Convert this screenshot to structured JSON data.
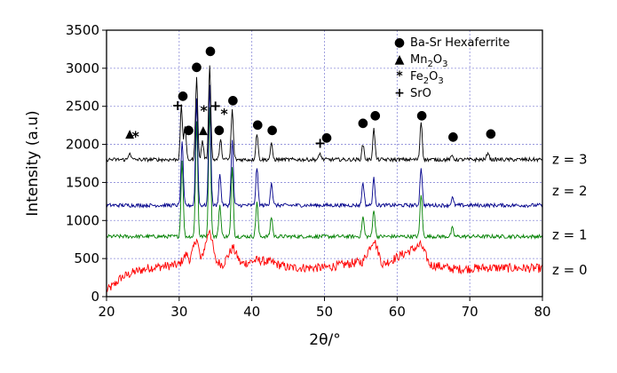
{
  "chart_data": {
    "type": "line",
    "title": "",
    "xlabel": "2θ/°",
    "ylabel": "Intensity (a.u)",
    "xlim": [
      20,
      80
    ],
    "ylim": [
      0,
      3500
    ],
    "xticks": [
      20,
      30,
      40,
      50,
      60,
      70,
      80
    ],
    "yticks": [
      0,
      500,
      1000,
      1500,
      2000,
      2500,
      3000,
      3500
    ],
    "grid": true,
    "legend_position": "top-right",
    "series": [
      {
        "name": "z = 0",
        "color": "#ff0000",
        "baseline": 320,
        "noise": 60,
        "points": [
          [
            20,
            80
          ],
          [
            21,
            150
          ],
          [
            22,
            250
          ],
          [
            24,
            330
          ],
          [
            26,
            380
          ],
          [
            28,
            400
          ],
          [
            30,
            420
          ],
          [
            31,
            560
          ],
          [
            31.5,
            480
          ],
          [
            32.4,
            780
          ],
          [
            33,
            470
          ],
          [
            34.2,
            900
          ],
          [
            35,
            470
          ],
          [
            36,
            420
          ],
          [
            37.4,
            650
          ],
          [
            38.5,
            430
          ],
          [
            40.8,
            480
          ],
          [
            42.7,
            450
          ],
          [
            45,
            380
          ],
          [
            50,
            380
          ],
          [
            55.3,
            460
          ],
          [
            56.8,
            760
          ],
          [
            58,
            420
          ],
          [
            63.3,
            680
          ],
          [
            64.5,
            420
          ],
          [
            68,
            360
          ],
          [
            72.5,
            380
          ],
          [
            80,
            370
          ]
        ]
      },
      {
        "name": "z = 1",
        "color": "#008000",
        "baseline": 790,
        "noise": 25,
        "peaks": [
          [
            30.4,
            1800
          ],
          [
            32.4,
            2300
          ],
          [
            34.2,
            2500
          ],
          [
            35.6,
            1200
          ],
          [
            37.3,
            1700
          ],
          [
            40.7,
            1250
          ],
          [
            42.7,
            1050
          ],
          [
            55.3,
            1050
          ],
          [
            56.8,
            1150
          ],
          [
            63.3,
            1350
          ],
          [
            67.6,
            900
          ]
        ]
      },
      {
        "name": "z = 2",
        "color": "#00008b",
        "baseline": 1200,
        "noise": 25,
        "peaks": [
          [
            30.4,
            2050
          ],
          [
            32.4,
            2600
          ],
          [
            34.2,
            2800
          ],
          [
            35.6,
            1600
          ],
          [
            37.3,
            2050
          ],
          [
            40.7,
            1700
          ],
          [
            42.7,
            1500
          ],
          [
            55.3,
            1500
          ],
          [
            56.8,
            1550
          ],
          [
            63.3,
            1700
          ],
          [
            67.6,
            1300
          ]
        ]
      },
      {
        "name": "z = 3",
        "color": "#000000",
        "baseline": 1800,
        "noise": 25,
        "peaks": [
          [
            23.2,
            1900
          ],
          [
            30.3,
            2500
          ],
          [
            30.8,
            2250
          ],
          [
            32.4,
            2900
          ],
          [
            33.2,
            2050
          ],
          [
            34.2,
            3050
          ],
          [
            35.7,
            2050
          ],
          [
            37.3,
            2450
          ],
          [
            40.7,
            2150
          ],
          [
            42.7,
            2000
          ],
          [
            49.4,
            1880
          ],
          [
            55.3,
            2000
          ],
          [
            56.8,
            2200
          ],
          [
            63.3,
            2300
          ],
          [
            67.6,
            1850
          ],
          [
            72.5,
            1900
          ]
        ]
      }
    ],
    "markers": [
      {
        "symbol": "●",
        "x": 30.5,
        "y": 2650
      },
      {
        "symbol": "●",
        "x": 31.3,
        "y": 2200
      },
      {
        "symbol": "●",
        "x": 32.4,
        "y": 3030
      },
      {
        "symbol": "●",
        "x": 34.3,
        "y": 3240
      },
      {
        "symbol": "●",
        "x": 35.5,
        "y": 2200
      },
      {
        "symbol": "●",
        "x": 37.4,
        "y": 2590
      },
      {
        "symbol": "●",
        "x": 40.8,
        "y": 2270
      },
      {
        "symbol": "●",
        "x": 42.8,
        "y": 2200
      },
      {
        "symbol": "●",
        "x": 50.3,
        "y": 2100
      },
      {
        "symbol": "●",
        "x": 55.3,
        "y": 2290
      },
      {
        "symbol": "●",
        "x": 57.0,
        "y": 2390
      },
      {
        "symbol": "●",
        "x": 63.4,
        "y": 2390
      },
      {
        "symbol": "●",
        "x": 67.7,
        "y": 2110
      },
      {
        "symbol": "●",
        "x": 72.9,
        "y": 2150
      },
      {
        "symbol": "▲",
        "x": 23.2,
        "y": 2150
      },
      {
        "symbol": "▲",
        "x": 33.3,
        "y": 2200
      },
      {
        "symbol": "*",
        "x": 24.0,
        "y": 2100
      },
      {
        "symbol": "*",
        "x": 33.4,
        "y": 2440
      },
      {
        "symbol": "*",
        "x": 36.2,
        "y": 2400
      },
      {
        "symbol": "+",
        "x": 29.8,
        "y": 2510
      },
      {
        "symbol": "+",
        "x": 35.0,
        "y": 2500
      },
      {
        "symbol": "+",
        "x": 49.4,
        "y": 2010
      }
    ],
    "legend": [
      {
        "symbol": "●",
        "label": "Ba-Sr Hexaferrite"
      },
      {
        "symbol": "▲",
        "label": "Mn",
        "sub1": "2",
        "mid": "O",
        "sub2": "3"
      },
      {
        "symbol": "*",
        "label": "Fe",
        "sub1": "2",
        "mid": "O",
        "sub2": "3"
      },
      {
        "symbol": "+",
        "label": "SrO"
      }
    ],
    "series_labels": [
      "z = 3",
      "z = 2",
      "z = 1",
      "z = 0"
    ]
  }
}
